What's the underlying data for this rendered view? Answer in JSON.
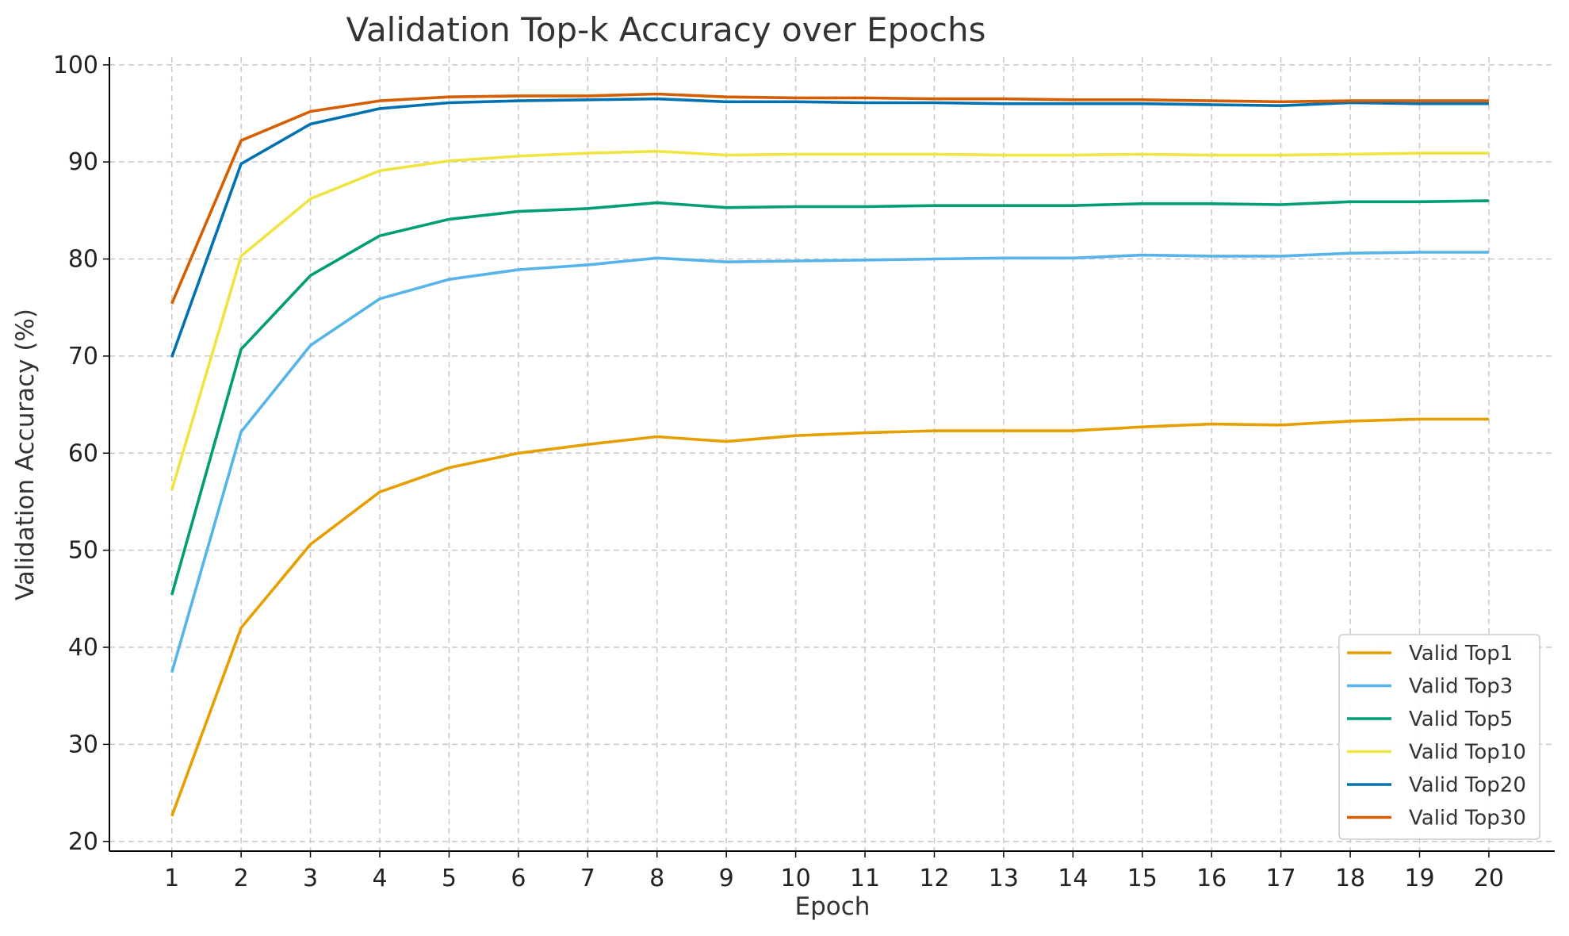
{
  "chart_data": {
    "type": "line",
    "title": "Validation Top-k Accuracy over Epochs",
    "xlabel": "Epoch",
    "ylabel": "Validation Accuracy (%)",
    "x": [
      1,
      2,
      3,
      4,
      5,
      6,
      7,
      8,
      9,
      10,
      11,
      12,
      13,
      14,
      15,
      16,
      17,
      18,
      19,
      20
    ],
    "xlim": [
      0.1,
      20.95
    ],
    "ylim": [
      19,
      100.8
    ],
    "yticks": [
      20,
      30,
      40,
      50,
      60,
      70,
      80,
      90,
      100
    ],
    "grid": true,
    "legend_position": "bottom-right",
    "series": [
      {
        "name": "Valid Top1",
        "color": "#E69F00",
        "values": [
          22.6,
          42.0,
          50.6,
          56.0,
          58.5,
          60.0,
          60.9,
          61.7,
          61.2,
          61.8,
          62.1,
          62.3,
          62.3,
          62.3,
          62.7,
          63.0,
          62.9,
          63.3,
          63.5,
          63.5
        ]
      },
      {
        "name": "Valid Top3",
        "color": "#56B4E9",
        "values": [
          37.4,
          62.2,
          71.1,
          75.9,
          77.9,
          78.9,
          79.4,
          80.1,
          79.7,
          79.8,
          79.9,
          80.0,
          80.1,
          80.1,
          80.4,
          80.3,
          80.3,
          80.6,
          80.7,
          80.7
        ]
      },
      {
        "name": "Valid Top5",
        "color": "#009E73",
        "values": [
          45.4,
          70.7,
          78.3,
          82.4,
          84.1,
          84.9,
          85.2,
          85.8,
          85.3,
          85.4,
          85.4,
          85.5,
          85.5,
          85.5,
          85.7,
          85.7,
          85.6,
          85.9,
          85.9,
          86.0
        ]
      },
      {
        "name": "Valid Top10",
        "color": "#F0E442",
        "values": [
          56.2,
          80.3,
          86.2,
          89.1,
          90.1,
          90.6,
          90.9,
          91.1,
          90.7,
          90.8,
          90.8,
          90.8,
          90.7,
          90.7,
          90.8,
          90.7,
          90.7,
          90.8,
          90.9,
          90.9
        ]
      },
      {
        "name": "Valid Top20",
        "color": "#0072B2",
        "values": [
          69.9,
          89.8,
          93.9,
          95.5,
          96.1,
          96.3,
          96.4,
          96.5,
          96.2,
          96.2,
          96.1,
          96.1,
          96.0,
          96.0,
          96.0,
          95.9,
          95.8,
          96.1,
          96.0,
          96.0
        ]
      },
      {
        "name": "Valid Top30",
        "color": "#D55E00",
        "values": [
          75.4,
          92.2,
          95.2,
          96.3,
          96.7,
          96.8,
          96.8,
          97.0,
          96.7,
          96.6,
          96.6,
          96.5,
          96.5,
          96.4,
          96.4,
          96.3,
          96.2,
          96.3,
          96.3,
          96.3
        ]
      }
    ]
  }
}
